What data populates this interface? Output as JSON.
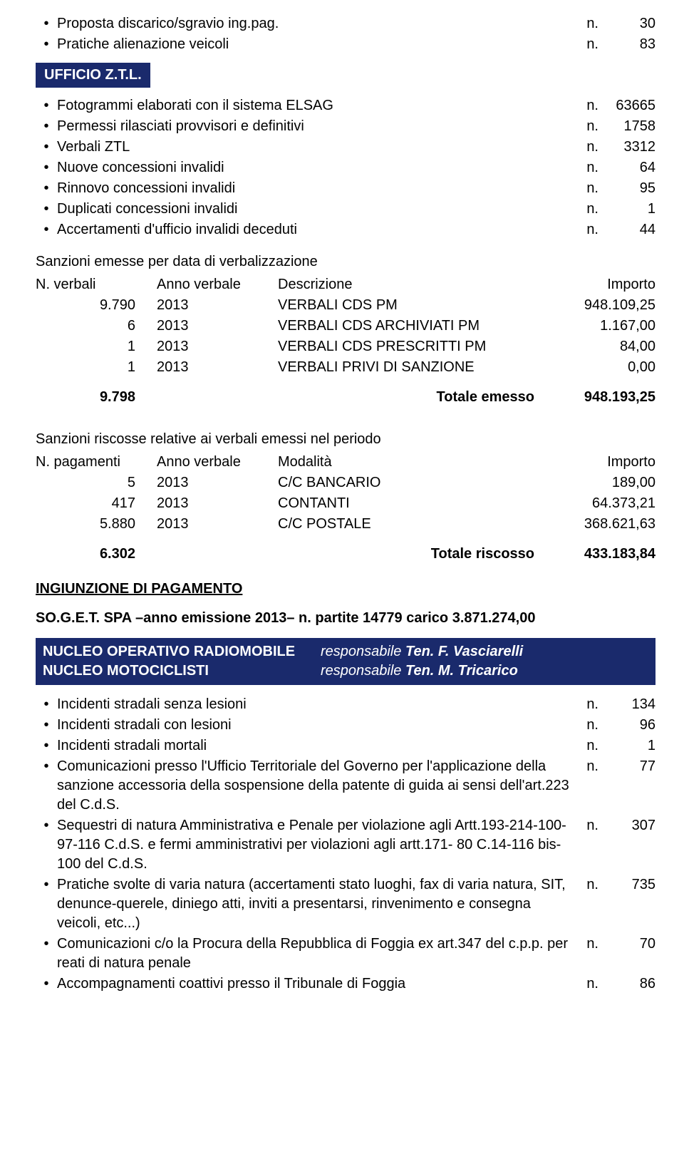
{
  "colors": {
    "badge_bg": "#1a2a6c",
    "nucleo_bg": "#1a2a6c"
  },
  "top_bullets": [
    {
      "text": "Proposta discarico/sgravio ing.pag.",
      "n": "n.",
      "val": "30"
    },
    {
      "text": "Pratiche alienazione veicoli",
      "n": "n.",
      "val": "83"
    }
  ],
  "badge": "UFFICIO Z.T.L.",
  "ztl_bullets": [
    {
      "text": "Fotogrammi elaborati con il sistema ELSAG",
      "n": "n.",
      "val": "63665"
    },
    {
      "text": "Permessi rilasciati provvisori e definitivi",
      "n": "n.",
      "val": "1758"
    },
    {
      "text": "Verbali ZTL",
      "n": "n.",
      "val": "3312"
    },
    {
      "text": "Nuove concessioni invalidi",
      "n": "n.",
      "val": "64"
    },
    {
      "text": "Rinnovo concessioni invalidi",
      "n": "n.",
      "val": "95"
    },
    {
      "text": "Duplicati concessioni invalidi",
      "n": "n.",
      "val": "1"
    },
    {
      "text": "Accertamenti d'ufficio invalidi deceduti",
      "n": "n.",
      "val": "44"
    }
  ],
  "emesse": {
    "heading": "Sanzioni emesse per data di verbalizzazione",
    "headers": {
      "c1": "N. verbali",
      "c2": "Anno verbale",
      "c3": "Descrizione",
      "c4": "Importo"
    },
    "rows": [
      {
        "c1": "9.790",
        "c2": "2013",
        "c3": "VERBALI CDS PM",
        "c4": "948.109,25"
      },
      {
        "c1": "6",
        "c2": "2013",
        "c3": "VERBALI CDS ARCHIVIATI PM",
        "c4": "1.167,00"
      },
      {
        "c1": "1",
        "c2": "2013",
        "c3": "VERBALI CDS PRESCRITTI PM",
        "c4": "84,00"
      },
      {
        "c1": "1",
        "c2": "2013",
        "c3": "VERBALI PRIVI DI SANZIONE",
        "c4": "0,00"
      }
    ],
    "total": {
      "c1": "9.798",
      "c3": "Totale emesso",
      "c4": "948.193,25"
    }
  },
  "riscosse": {
    "heading": "Sanzioni riscosse relative ai verbali emessi nel periodo",
    "headers": {
      "c1": "N. pagamenti",
      "c2": "Anno verbale",
      "c3": "Modalità",
      "c4": "Importo"
    },
    "rows": [
      {
        "c1": "5",
        "c2": "2013",
        "c3": "C/C BANCARIO",
        "c4": "189,00"
      },
      {
        "c1": "417",
        "c2": "2013",
        "c3": "CONTANTI",
        "c4": "64.373,21"
      },
      {
        "c1": "5.880",
        "c2": "2013",
        "c3": "C/C POSTALE",
        "c4": "368.621,63"
      }
    ],
    "total": {
      "c1": "6.302",
      "c3": "Totale riscosso",
      "c4": "433.183,84"
    }
  },
  "ingiunzione": "INGIUNZIONE DI PAGAMENTO",
  "soget": "SO.G.E.T.  SPA –anno emissione 2013– n. partite 14779 carico 3.871.274,00",
  "nucleo": {
    "row1_label": "NUCLEO OPERATIVO RADIOMOBILE",
    "row1_resp_prefix": "responsabile ",
    "row1_resp_name": "Ten. F. Vasciarelli",
    "row2_label": "NUCLEO MOTOCICLISTI",
    "row2_resp_prefix": "responsabile ",
    "row2_resp_name": "Ten. M. Tricarico"
  },
  "incidenti": [
    {
      "text": "Incidenti stradali senza lesioni",
      "n": "n.",
      "val": "134"
    },
    {
      "text": "Incidenti stradali con lesioni",
      "n": "n.",
      "val": "96"
    },
    {
      "text": "Incidenti stradali mortali",
      "n": "n.",
      "val": "1"
    },
    {
      "text": "Comunicazioni presso l'Ufficio Territoriale del Governo per l'applicazione della sanzione accessoria della sospensione della patente di guida ai sensi dell'art.223 del C.d.S.",
      "n": "n.",
      "val": "77"
    },
    {
      "text": "Sequestri di natura Amministrativa e Penale per violazione agli Artt.193-214-100-97-116 C.d.S. e fermi amministrativi per violazioni agli artt.171- 80 C.14-116 bis-100 del C.d.S.",
      "n": "n.",
      "val": "307"
    },
    {
      "text": "Pratiche svolte di varia natura (accertamenti stato luoghi, fax di varia natura, SIT, denunce-querele, diniego atti, inviti a presentarsi, rinvenimento e consegna veicoli, etc...)",
      "n": "n.",
      "val": "735"
    },
    {
      "text": "Comunicazioni c/o la Procura della Repubblica di Foggia ex art.347 del c.p.p. per reati di natura penale",
      "n": "n.",
      "val": "70"
    },
    {
      "text": "Accompagnamenti coattivi presso il Tribunale di Foggia",
      "n": "n.",
      "val": "86"
    }
  ]
}
